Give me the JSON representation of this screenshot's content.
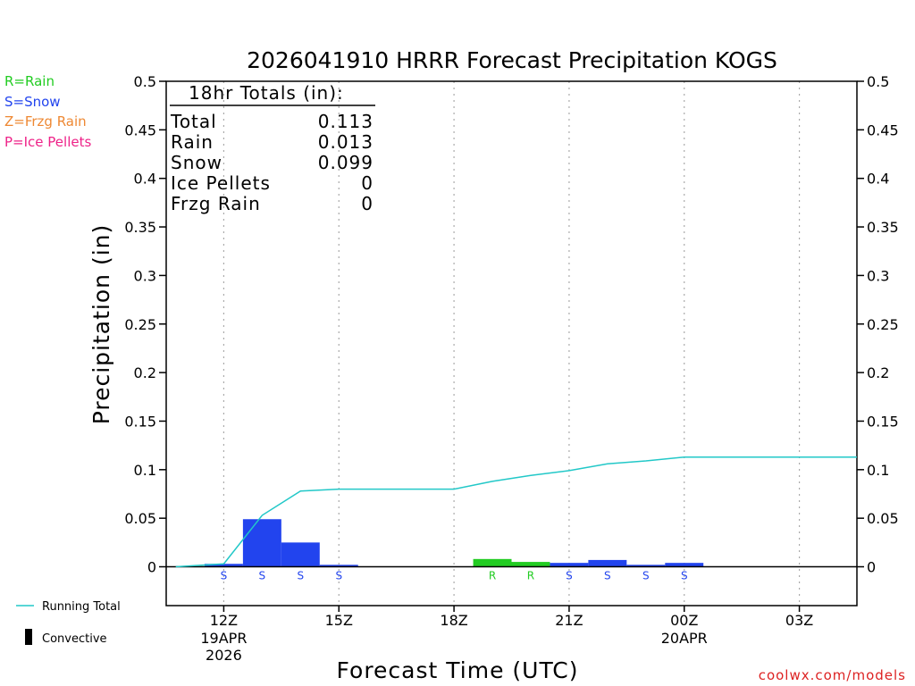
{
  "title": "2026041910 HRRR Forecast Precipitation KOGS",
  "legend_types": [
    {
      "label": "R=Rain",
      "color": "#22cc22"
    },
    {
      "label": "S=Snow",
      "color": "#2244ee"
    },
    {
      "label": "Z=Frzg Rain",
      "color": "#ee8833"
    },
    {
      "label": "P=Ice Pellets",
      "color": "#ee2288"
    }
  ],
  "legend_bottom": {
    "running_total": "Running Total",
    "convective": "Convective"
  },
  "totals": {
    "header": "18hr Totals (in):",
    "rows": [
      {
        "label": "Total",
        "value": "0.113"
      },
      {
        "label": "Rain",
        "value": "0.013"
      },
      {
        "label": "Snow",
        "value": "0.099"
      },
      {
        "label": "Ice Pellets",
        "value": "0"
      },
      {
        "label": "Frzg Rain",
        "value": "0"
      }
    ]
  },
  "credit": "coolwx.com/models",
  "colors": {
    "rain": "#22cc22",
    "snow": "#2244ee",
    "running": "#22c8c8",
    "axis": "#000000",
    "grid": "#aaaaaa"
  },
  "chart_data": {
    "type": "bar",
    "title": "2026041910 HRRR Forecast Precipitation KOGS",
    "xlabel": "Forecast Time (UTC)",
    "ylabel": "Precipitation (in)",
    "ylim": [
      -0.04,
      0.5
    ],
    "xlim": [
      10.5,
      28.5
    ],
    "yticks": [
      0,
      0.05,
      0.1,
      0.15,
      0.2,
      0.25,
      0.3,
      0.35,
      0.4,
      0.45,
      0.5
    ],
    "ytick_labels": [
      "0",
      "0.05",
      "0.1",
      "0.15",
      "0.2",
      "0.25",
      "0.3",
      "0.35",
      "0.4",
      "0.45",
      "0.5"
    ],
    "xticks": [
      {
        "hour": 12,
        "label": "12Z",
        "sub": [
          "19APR",
          "2026"
        ]
      },
      {
        "hour": 15,
        "label": "15Z",
        "sub": []
      },
      {
        "hour": 18,
        "label": "18Z",
        "sub": []
      },
      {
        "hour": 21,
        "label": "21Z",
        "sub": []
      },
      {
        "hour": 24,
        "label": "00Z",
        "sub": [
          "20APR"
        ]
      },
      {
        "hour": 27,
        "label": "03Z",
        "sub": []
      }
    ],
    "hourly": [
      {
        "hour": 11,
        "value": 0,
        "type": ""
      },
      {
        "hour": 12,
        "value": 0.003,
        "type": "S"
      },
      {
        "hour": 13,
        "value": 0.049,
        "type": "S"
      },
      {
        "hour": 14,
        "value": 0.025,
        "type": "S"
      },
      {
        "hour": 15,
        "value": 0.002,
        "type": "S"
      },
      {
        "hour": 16,
        "value": 0,
        "type": ""
      },
      {
        "hour": 17,
        "value": 0,
        "type": ""
      },
      {
        "hour": 18,
        "value": 0,
        "type": ""
      },
      {
        "hour": 19,
        "value": 0.008,
        "type": "R"
      },
      {
        "hour": 20,
        "value": 0.005,
        "type": "R"
      },
      {
        "hour": 21,
        "value": 0.004,
        "type": "S"
      },
      {
        "hour": 22,
        "value": 0.007,
        "type": "S"
      },
      {
        "hour": 23,
        "value": 0.002,
        "type": "S"
      },
      {
        "hour": 24,
        "value": 0.004,
        "type": "S"
      },
      {
        "hour": 25,
        "value": 0,
        "type": ""
      },
      {
        "hour": 26,
        "value": 0,
        "type": ""
      },
      {
        "hour": 27,
        "value": 0,
        "type": ""
      },
      {
        "hour": 28,
        "value": 0,
        "type": ""
      }
    ],
    "running_total": {
      "x": [
        10.75,
        12,
        13,
        14,
        15,
        16,
        17,
        18,
        19,
        20,
        21,
        22,
        23,
        24,
        25,
        26,
        27,
        28.5
      ],
      "y": [
        0,
        0.003,
        0.053,
        0.078,
        0.08,
        0.08,
        0.08,
        0.08,
        0.088,
        0.094,
        0.099,
        0.106,
        0.109,
        0.113,
        0.113,
        0.113,
        0.113,
        0.113
      ]
    }
  }
}
